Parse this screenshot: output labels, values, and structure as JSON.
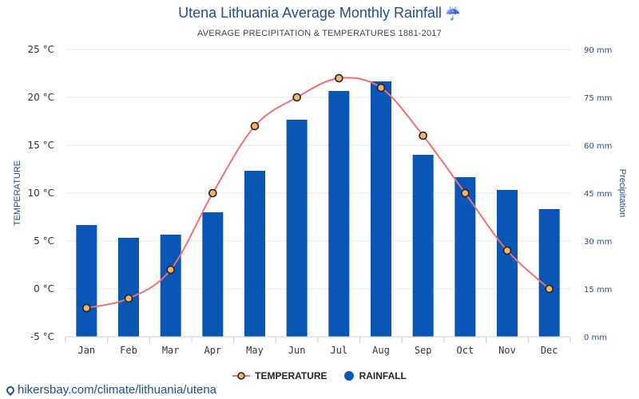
{
  "header": {
    "title": "Utena Lithuania Average Monthly Rainfall",
    "title_icon": "umbrella-icon",
    "subtitle": "AVERAGE PRECIPITATION & TEMPERATURES 1881-2017"
  },
  "legend": {
    "temperature_label": "TEMPERATURE",
    "rainfall_label": "RAINFALL"
  },
  "footer": {
    "link_text": "hikersbay.com/climate/lithuania/utena",
    "icon": "location-pin-icon"
  },
  "colors": {
    "bar": "#0a56b5",
    "line": "#f07070",
    "point_fill": "#f6b26b",
    "point_stroke": "#222222",
    "title": "#1f4e8c"
  },
  "chart_data": {
    "type": "bar",
    "categories": [
      "Jan",
      "Feb",
      "Mar",
      "Apr",
      "May",
      "Jun",
      "Jul",
      "Aug",
      "Sep",
      "Oct",
      "Nov",
      "Dec"
    ],
    "series": [
      {
        "name": "RAINFALL",
        "type": "bar",
        "axis": "right",
        "values": [
          35,
          31,
          32,
          39,
          52,
          68,
          77,
          80,
          57,
          50,
          46,
          40
        ]
      },
      {
        "name": "TEMPERATURE",
        "type": "line",
        "axis": "left",
        "values": [
          -2,
          -1,
          2,
          10,
          17,
          20,
          22,
          21,
          16,
          10,
          4,
          0
        ]
      }
    ],
    "ylabel_left": "TEMPERATURE",
    "ylabel_right": "Precipitation",
    "ylim_left": [
      -5,
      25
    ],
    "ylim_right": [
      0,
      90
    ],
    "yticks_left": [
      "-5 °C",
      "0 °C",
      "5 °C",
      "10 °C",
      "15 °C",
      "20 °C",
      "25 °C"
    ],
    "yticks_right": [
      "0 mm",
      "15 mm",
      "30 mm",
      "45 mm",
      "60 mm",
      "75 mm",
      "90 mm"
    ],
    "grid": true,
    "legend_position": "bottom"
  }
}
